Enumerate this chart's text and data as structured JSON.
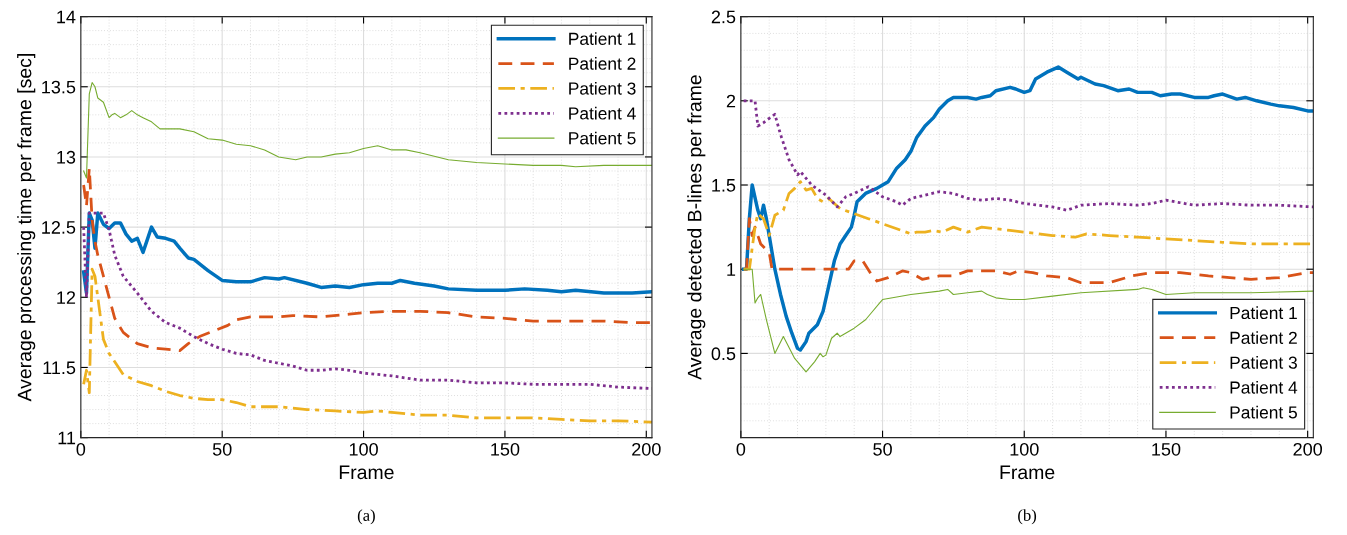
{
  "chart_data": [
    {
      "type": "line",
      "xlabel": "Frame",
      "ylabel": "Average processing time per frame [sec]",
      "annotations": [
        "(a)"
      ],
      "xlim": [
        0,
        202
      ],
      "xticks": [
        0,
        50,
        100,
        150,
        200
      ],
      "ylim": [
        11,
        14
      ],
      "yticks": [
        11,
        11.5,
        12,
        12.5,
        13,
        13.5,
        14
      ],
      "grid": true,
      "legend": "top right",
      "series": [
        {
          "name": "Patient 1",
          "color": "#0072bd",
          "line_style": "solid",
          "x": [
            1,
            2,
            3,
            4,
            5,
            6,
            8,
            10,
            12,
            14,
            16,
            18,
            20,
            22,
            25,
            27,
            30,
            33,
            35,
            38,
            40,
            45,
            50,
            55,
            60,
            65,
            70,
            72,
            80,
            85,
            90,
            95,
            100,
            105,
            110,
            113,
            118,
            125,
            130,
            140,
            150,
            157,
            165,
            170,
            175,
            185,
            195,
            202
          ],
          "values": [
            12.18,
            12.03,
            12.6,
            12.55,
            12.35,
            12.6,
            12.52,
            12.49,
            12.53,
            12.53,
            12.45,
            12.4,
            12.42,
            12.32,
            12.5,
            12.43,
            12.42,
            12.4,
            12.35,
            12.28,
            12.27,
            12.19,
            12.12,
            12.11,
            12.11,
            12.14,
            12.13,
            12.14,
            12.1,
            12.07,
            12.08,
            12.07,
            12.09,
            12.1,
            12.1,
            12.12,
            12.1,
            12.08,
            12.06,
            12.05,
            12.05,
            12.06,
            12.05,
            12.04,
            12.05,
            12.03,
            12.03,
            12.04
          ]
        },
        {
          "name": "Patient 2",
          "color": "#d95319",
          "line_style": "dashed",
          "x": [
            1,
            2,
            3,
            4,
            5,
            6,
            8,
            10,
            12,
            15,
            20,
            25,
            30,
            35,
            38,
            42,
            47,
            52,
            55,
            60,
            65,
            70,
            75,
            85,
            95,
            100,
            110,
            120,
            130,
            140,
            150,
            160,
            175,
            185,
            195,
            202
          ],
          "values": [
            12.8,
            12.65,
            12.92,
            12.55,
            12.4,
            12.3,
            12.15,
            12.0,
            11.85,
            11.75,
            11.67,
            11.64,
            11.63,
            11.62,
            11.67,
            11.72,
            11.76,
            11.8,
            11.84,
            11.86,
            11.86,
            11.86,
            11.87,
            11.86,
            11.88,
            11.89,
            11.9,
            11.9,
            11.89,
            11.86,
            11.85,
            11.83,
            11.83,
            11.83,
            11.82,
            11.82
          ]
        },
        {
          "name": "Patient 3",
          "color": "#edb120",
          "line_style": "dashdot",
          "x": [
            1,
            2,
            3,
            4,
            5,
            6,
            8,
            10,
            15,
            20,
            25,
            30,
            35,
            40,
            45,
            50,
            55,
            60,
            70,
            80,
            90,
            100,
            105,
            110,
            120,
            130,
            140,
            150,
            160,
            170,
            180,
            190,
            202
          ],
          "values": [
            11.38,
            11.48,
            11.32,
            12.2,
            12.15,
            12.0,
            11.7,
            11.6,
            11.45,
            11.4,
            11.37,
            11.33,
            11.3,
            11.28,
            11.27,
            11.27,
            11.25,
            11.22,
            11.22,
            11.2,
            11.19,
            11.18,
            11.19,
            11.18,
            11.16,
            11.16,
            11.14,
            11.14,
            11.14,
            11.13,
            11.12,
            11.12,
            11.11
          ]
        },
        {
          "name": "Patient 4",
          "color": "#7e2f8e",
          "line_style": "dotted",
          "x": [
            1,
            2,
            3,
            5,
            8,
            10,
            12,
            15,
            20,
            25,
            30,
            35,
            40,
            45,
            50,
            55,
            60,
            65,
            70,
            75,
            80,
            85,
            90,
            95,
            100,
            110,
            120,
            130,
            140,
            150,
            160,
            170,
            180,
            190,
            202
          ],
          "values": [
            12.5,
            12.0,
            12.6,
            12.6,
            12.6,
            12.48,
            12.3,
            12.15,
            12.03,
            11.9,
            11.82,
            11.78,
            11.72,
            11.67,
            11.63,
            11.6,
            11.59,
            11.55,
            11.53,
            11.51,
            11.48,
            11.48,
            11.49,
            11.48,
            11.46,
            11.44,
            11.41,
            11.41,
            11.39,
            11.39,
            11.38,
            11.38,
            11.38,
            11.36,
            11.35
          ]
        },
        {
          "name": "Patient 5",
          "color": "#77ac30",
          "line_style": "solid",
          "x": [
            1,
            2,
            3,
            4,
            5,
            6,
            8,
            10,
            11,
            12,
            14,
            16,
            18,
            20,
            22,
            25,
            28,
            32,
            35,
            40,
            45,
            50,
            55,
            60,
            65,
            70,
            76,
            80,
            85,
            90,
            95,
            100,
            105,
            110,
            115,
            120,
            130,
            140,
            150,
            160,
            170,
            175,
            185,
            200,
            202
          ],
          "values": [
            12.9,
            12.85,
            13.45,
            13.53,
            13.5,
            13.42,
            13.39,
            13.28,
            13.3,
            13.31,
            13.28,
            13.3,
            13.33,
            13.3,
            13.28,
            13.25,
            13.2,
            13.2,
            13.2,
            13.18,
            13.13,
            13.12,
            13.09,
            13.08,
            13.05,
            13.0,
            12.98,
            13.0,
            13.0,
            13.02,
            13.03,
            13.06,
            13.08,
            13.05,
            13.05,
            13.03,
            12.98,
            12.96,
            12.95,
            12.94,
            12.94,
            12.93,
            12.94,
            12.94,
            12.94
          ]
        }
      ]
    },
    {
      "type": "line",
      "xlabel": "Frame",
      "ylabel": "Average detected B-lines per frame",
      "annotations": [
        "(b)"
      ],
      "xlim": [
        0,
        202
      ],
      "xticks": [
        0,
        50,
        100,
        150,
        200
      ],
      "ylim": [
        0,
        2.5
      ],
      "yticks": [
        0.5,
        1,
        1.5,
        2,
        2.5
      ],
      "grid": true,
      "legend": "bottom right",
      "series": [
        {
          "name": "Patient 1",
          "color": "#0072bd",
          "line_style": "solid",
          "x": [
            1,
            2,
            3,
            4,
            6,
            7,
            8,
            9,
            10,
            12,
            14,
            16,
            18,
            20,
            21,
            23,
            24,
            27,
            29,
            31,
            33,
            35,
            37,
            39,
            40,
            41,
            44,
            48,
            50,
            52,
            55,
            58,
            60,
            62,
            65,
            68,
            70,
            73,
            75,
            80,
            83,
            85,
            88,
            90,
            95,
            97,
            100,
            102,
            104,
            108,
            112,
            115,
            119,
            120,
            125,
            128,
            133,
            137,
            140,
            145,
            148,
            152,
            155,
            160,
            165,
            167,
            170,
            175,
            178,
            182,
            187,
            190,
            195,
            200,
            202
          ],
          "values": [
            1.0,
            1.0,
            1.3,
            1.5,
            1.35,
            1.3,
            1.38,
            1.3,
            1.2,
            1.0,
            0.85,
            0.72,
            0.62,
            0.53,
            0.52,
            0.57,
            0.62,
            0.67,
            0.75,
            0.9,
            1.05,
            1.15,
            1.2,
            1.25,
            1.32,
            1.4,
            1.45,
            1.48,
            1.5,
            1.52,
            1.6,
            1.65,
            1.7,
            1.78,
            1.85,
            1.9,
            1.95,
            2.0,
            2.02,
            2.02,
            2.01,
            2.02,
            2.03,
            2.06,
            2.08,
            2.07,
            2.05,
            2.06,
            2.13,
            2.17,
            2.2,
            2.17,
            2.13,
            2.14,
            2.1,
            2.09,
            2.06,
            2.07,
            2.05,
            2.05,
            2.03,
            2.04,
            2.04,
            2.02,
            2.02,
            2.03,
            2.04,
            2.01,
            2.02,
            2.0,
            1.98,
            1.97,
            1.96,
            1.94,
            1.94
          ]
        },
        {
          "name": "Patient 2",
          "color": "#d95319",
          "line_style": "dashed",
          "x": [
            1,
            2,
            3,
            4,
            5,
            7,
            10,
            11,
            20,
            38,
            40,
            43,
            46,
            48,
            52,
            57,
            60,
            64,
            70,
            75,
            80,
            90,
            95,
            98,
            103,
            108,
            115,
            120,
            130,
            138,
            145,
            155,
            165,
            180,
            190,
            200,
            202
          ],
          "values": [
            1.0,
            1.0,
            1.3,
            1.2,
            1.25,
            1.15,
            1.1,
            1.0,
            1.0,
            1.0,
            1.05,
            1.05,
            0.97,
            0.93,
            0.95,
            0.99,
            0.98,
            0.94,
            0.96,
            0.96,
            0.99,
            0.99,
            0.97,
            0.99,
            0.98,
            0.96,
            0.95,
            0.92,
            0.92,
            0.96,
            0.98,
            0.98,
            0.96,
            0.94,
            0.95,
            0.98,
            0.98
          ]
        },
        {
          "name": "Patient 3",
          "color": "#edb120",
          "line_style": "dashdot",
          "x": [
            1,
            3,
            5,
            6,
            8,
            10,
            12,
            15,
            17,
            19,
            21,
            23,
            25,
            27,
            29,
            31,
            35,
            40,
            45,
            50,
            55,
            60,
            62,
            65,
            68,
            71,
            75,
            80,
            85,
            90,
            95,
            100,
            110,
            118,
            122,
            130,
            140,
            150,
            160,
            170,
            180,
            190,
            202
          ],
          "values": [
            1.0,
            1.0,
            1.25,
            1.33,
            1.3,
            1.2,
            1.32,
            1.35,
            1.45,
            1.48,
            1.52,
            1.47,
            1.48,
            1.42,
            1.4,
            1.42,
            1.36,
            1.33,
            1.3,
            1.27,
            1.24,
            1.21,
            1.22,
            1.22,
            1.23,
            1.22,
            1.25,
            1.22,
            1.25,
            1.24,
            1.23,
            1.22,
            1.2,
            1.19,
            1.21,
            1.2,
            1.19,
            1.18,
            1.17,
            1.16,
            1.15,
            1.15,
            1.15
          ]
        },
        {
          "name": "Patient 4",
          "color": "#7e2f8e",
          "line_style": "dotted",
          "x": [
            1,
            5,
            6,
            8,
            12,
            14,
            17,
            20,
            21,
            25,
            30,
            34,
            37,
            40,
            45,
            50,
            55,
            57,
            60,
            65,
            70,
            75,
            80,
            85,
            90,
            95,
            100,
            110,
            115,
            120,
            130,
            140,
            145,
            150,
            160,
            170,
            180,
            190,
            202
          ],
          "values": [
            2.0,
            2.0,
            1.85,
            1.87,
            1.92,
            1.8,
            1.65,
            1.56,
            1.58,
            1.5,
            1.44,
            1.37,
            1.43,
            1.45,
            1.49,
            1.43,
            1.4,
            1.38,
            1.42,
            1.44,
            1.46,
            1.45,
            1.42,
            1.41,
            1.42,
            1.41,
            1.39,
            1.37,
            1.35,
            1.38,
            1.39,
            1.38,
            1.39,
            1.41,
            1.38,
            1.39,
            1.38,
            1.38,
            1.37
          ]
        },
        {
          "name": "Patient 5",
          "color": "#77ac30",
          "line_style": "solid",
          "x": [
            1,
            4,
            5,
            6,
            7,
            9,
            12,
            15,
            19,
            23,
            26,
            28,
            29,
            30,
            32,
            34,
            35,
            40,
            44,
            46,
            49,
            50,
            60,
            70,
            73,
            75,
            80,
            85,
            87,
            90,
            95,
            100,
            110,
            120,
            140,
            142,
            145,
            150,
            160,
            180,
            202
          ],
          "values": [
            1.0,
            1.0,
            0.8,
            0.83,
            0.85,
            0.7,
            0.5,
            0.6,
            0.47,
            0.39,
            0.45,
            0.5,
            0.48,
            0.49,
            0.59,
            0.62,
            0.6,
            0.65,
            0.7,
            0.74,
            0.8,
            0.82,
            0.85,
            0.87,
            0.88,
            0.85,
            0.86,
            0.87,
            0.85,
            0.83,
            0.82,
            0.82,
            0.84,
            0.86,
            0.88,
            0.89,
            0.88,
            0.85,
            0.86,
            0.86,
            0.87
          ]
        }
      ]
    }
  ]
}
